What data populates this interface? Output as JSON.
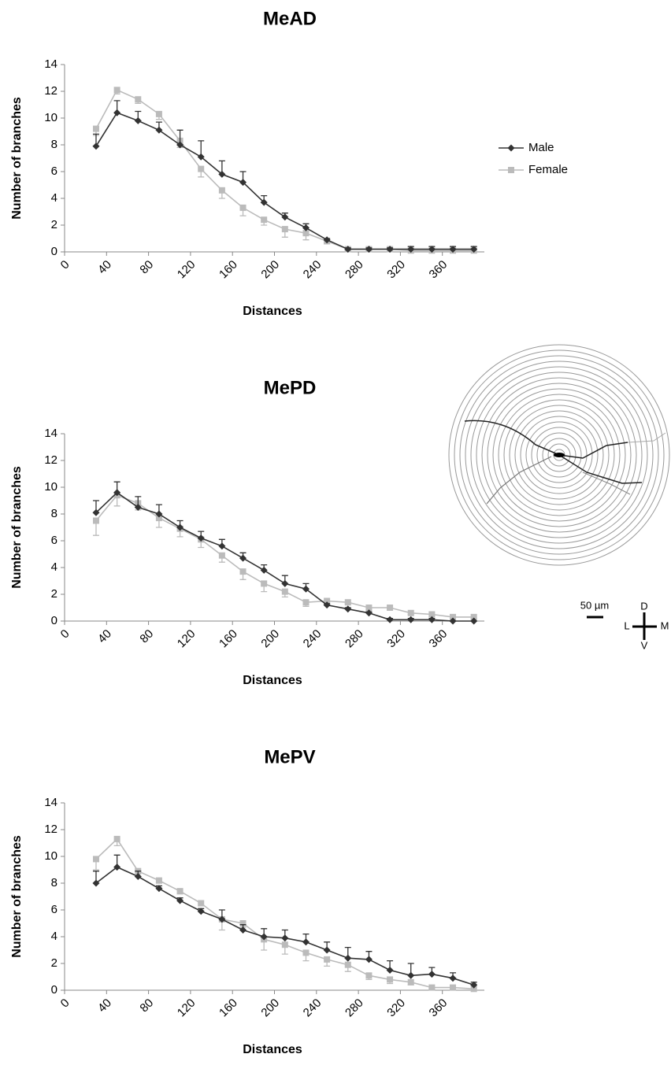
{
  "chart_data": [
    {
      "type": "line",
      "title": "MeAD",
      "xlabel": "Distances",
      "ylabel": "Number of branches",
      "x": [
        30,
        50,
        70,
        90,
        110,
        130,
        150,
        170,
        190,
        210,
        230,
        250,
        270,
        290,
        310,
        330,
        350,
        370,
        390
      ],
      "xlim": [
        0,
        400
      ],
      "xticks": [
        0,
        40,
        80,
        120,
        160,
        200,
        240,
        280,
        320,
        360
      ],
      "ylim": [
        0,
        14
      ],
      "yticks": [
        0,
        2,
        4,
        6,
        8,
        10,
        12,
        14
      ],
      "grid": false,
      "legend": "right",
      "series": [
        {
          "name": "Male",
          "color": "#333333",
          "marker": "diamond",
          "values": [
            7.9,
            10.4,
            9.8,
            9.1,
            8.0,
            7.1,
            5.8,
            5.2,
            3.7,
            2.6,
            1.8,
            0.9,
            0.2,
            0.2,
            0.2,
            0.2,
            0.2,
            0.2,
            0.2
          ],
          "errors": [
            0.9,
            0.9,
            0.7,
            0.6,
            1.1,
            1.2,
            1.0,
            0.8,
            0.5,
            0.3,
            0.3,
            0.1,
            0.1,
            0.1,
            0.1,
            0.2,
            0.2,
            0.2,
            0.2
          ]
        },
        {
          "name": "Female",
          "color": "#bbbbbb",
          "marker": "square",
          "values": [
            9.2,
            12.1,
            11.4,
            10.3,
            8.3,
            6.2,
            4.6,
            3.3,
            2.4,
            1.7,
            1.4,
            0.8,
            0.2,
            0.2,
            0.2,
            0.1,
            0.1,
            0.1,
            0.1
          ],
          "errors": [
            0.5,
            0.3,
            0.3,
            0.4,
            0.5,
            0.6,
            0.6,
            0.6,
            0.4,
            0.6,
            0.5,
            0.2,
            0.1,
            0.1,
            0.1,
            0.1,
            0.1,
            0.1,
            0.1
          ]
        }
      ]
    },
    {
      "type": "line",
      "title": "MePD",
      "xlabel": "Distances",
      "ylabel": "Number of branches",
      "x": [
        30,
        50,
        70,
        90,
        110,
        130,
        150,
        170,
        190,
        210,
        230,
        250,
        270,
        290,
        310,
        330,
        350,
        370,
        390
      ],
      "xlim": [
        0,
        400
      ],
      "xticks": [
        0,
        40,
        80,
        120,
        160,
        200,
        240,
        280,
        320,
        360
      ],
      "ylim": [
        0,
        14
      ],
      "yticks": [
        0,
        2,
        4,
        6,
        8,
        10,
        12,
        14
      ],
      "grid": false,
      "series": [
        {
          "name": "Male",
          "color": "#333333",
          "marker": "diamond",
          "values": [
            8.1,
            9.6,
            8.5,
            8.0,
            7.0,
            6.2,
            5.6,
            4.7,
            3.8,
            2.8,
            2.4,
            1.2,
            0.9,
            0.6,
            0.1,
            0.1,
            0.1,
            0,
            0
          ],
          "errors": [
            0.9,
            0.8,
            0.8,
            0.7,
            0.5,
            0.5,
            0.5,
            0.4,
            0.4,
            0.6,
            0.4,
            0.1,
            0.1,
            0.1,
            0.1,
            0.1,
            0.1,
            0,
            0
          ]
        },
        {
          "name": "Female",
          "color": "#bbbbbb",
          "marker": "square",
          "values": [
            7.5,
            9.4,
            8.8,
            7.7,
            6.9,
            6.1,
            4.9,
            3.7,
            2.8,
            2.2,
            1.4,
            1.5,
            1.4,
            1.0,
            1.0,
            0.6,
            0.5,
            0.3,
            0.3
          ],
          "errors": [
            1.1,
            0.8,
            0.5,
            0.7,
            0.6,
            0.6,
            0.5,
            0.6,
            0.6,
            0.4,
            0.3,
            0.1,
            0.1,
            0.1,
            0.1,
            0.1,
            0.1,
            0.1,
            0.1
          ]
        }
      ]
    },
    {
      "type": "line",
      "title": "MePV",
      "xlabel": "Distances",
      "ylabel": "Number of branches",
      "x": [
        30,
        50,
        70,
        90,
        110,
        130,
        150,
        170,
        190,
        210,
        230,
        250,
        270,
        290,
        310,
        330,
        350,
        370,
        390
      ],
      "xlim": [
        0,
        400
      ],
      "xticks": [
        0,
        40,
        80,
        120,
        160,
        200,
        240,
        280,
        320,
        360
      ],
      "ylim": [
        0,
        14
      ],
      "yticks": [
        0,
        2,
        4,
        6,
        8,
        10,
        12,
        14
      ],
      "grid": false,
      "series": [
        {
          "name": "Male",
          "color": "#333333",
          "marker": "diamond",
          "values": [
            8.0,
            9.2,
            8.5,
            7.6,
            6.7,
            5.9,
            5.3,
            4.5,
            4.0,
            3.9,
            3.6,
            3.0,
            2.4,
            2.3,
            1.5,
            1.1,
            1.2,
            0.9,
            0.4
          ],
          "errors": [
            0.9,
            0.9,
            0.4,
            0.2,
            0.2,
            0.2,
            0.7,
            0.4,
            0.6,
            0.6,
            0.6,
            0.6,
            0.8,
            0.6,
            0.7,
            0.9,
            0.5,
            0.4,
            0.2
          ]
        },
        {
          "name": "Female",
          "color": "#bbbbbb",
          "marker": "square",
          "values": [
            9.8,
            11.3,
            8.9,
            8.2,
            7.4,
            6.5,
            5.3,
            5.0,
            3.8,
            3.4,
            2.8,
            2.3,
            1.9,
            1.1,
            0.8,
            0.6,
            0.2,
            0.2,
            0.1
          ],
          "errors": [
            0.8,
            0.5,
            0.4,
            0.2,
            0.2,
            0.2,
            0.8,
            0.3,
            0.8,
            0.7,
            0.6,
            0.5,
            0.5,
            0.3,
            0.3,
            0.2,
            0.1,
            0.1,
            0.1
          ]
        }
      ]
    }
  ],
  "diagram": {
    "scale_label": "50 µm",
    "compass": {
      "top": "D",
      "bottom": "V",
      "left": "L",
      "right": "M"
    }
  }
}
